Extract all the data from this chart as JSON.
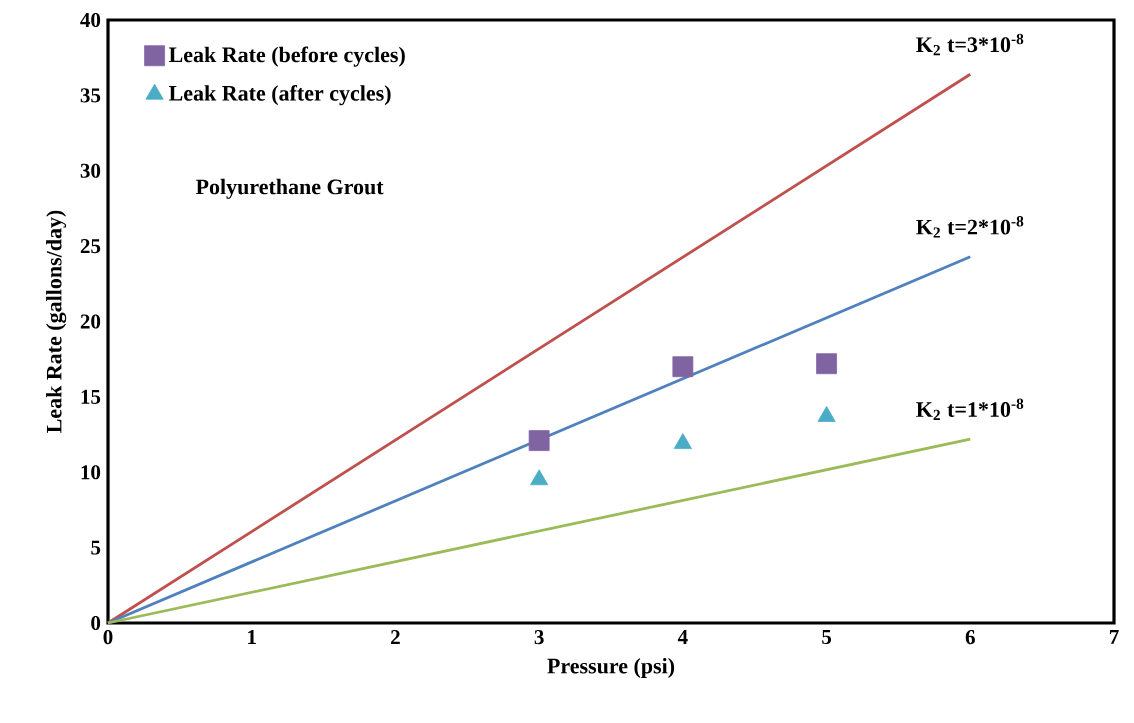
{
  "chart_data": {
    "type": "scatter",
    "xlabel": "Pressure (psi)",
    "ylabel": "Leak Rate (gallons/day)",
    "xlim": [
      0,
      7
    ],
    "ylim": [
      0,
      40
    ],
    "xticks": [
      0,
      1,
      2,
      3,
      4,
      5,
      6,
      7
    ],
    "yticks": [
      0,
      5,
      10,
      15,
      20,
      25,
      30,
      35,
      40
    ],
    "legend": "top left",
    "annotations": [
      "Polyurethane Grout"
    ],
    "series": [
      {
        "name": "K$_{2}$ t=3*10$^{-8}$",
        "type": "line",
        "color": "#c0504d",
        "x": [
          0,
          6
        ],
        "values": [
          0,
          36.4
        ]
      },
      {
        "name": "K$_{2}$ t=2*10$^{-8}$",
        "type": "line",
        "color": "#4f81bd",
        "x": [
          0,
          6
        ],
        "values": [
          0,
          24.3
        ]
      },
      {
        "name": "K$_{2}$ t=1*10$^{-8}$",
        "type": "line",
        "color": "#9bbb59",
        "x": [
          0,
          6
        ],
        "values": [
          0,
          12.2
        ]
      },
      {
        "name": "Leak Rate (before cycles)",
        "marker": "square",
        "color": "#8064a2",
        "x": [
          3,
          4,
          5
        ],
        "values": [
          12.1,
          17.0,
          17.2
        ]
      },
      {
        "name": "Leak Rate (after cycles)",
        "marker": "triangle",
        "color": "#4bacc6",
        "x": [
          3,
          4,
          5
        ],
        "values": [
          9.5,
          11.9,
          13.7
        ]
      }
    ]
  }
}
